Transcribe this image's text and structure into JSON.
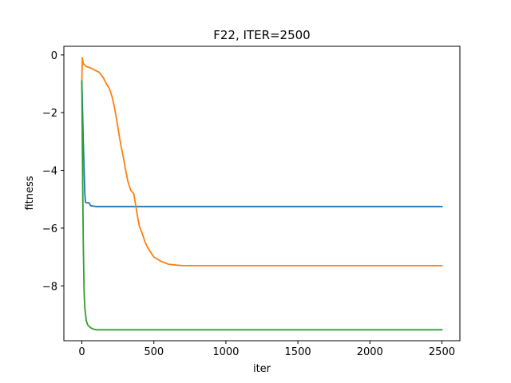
{
  "chart_data": {
    "type": "line",
    "title": "F22, ITER=2500",
    "xlabel": "iter",
    "ylabel": "fitness",
    "xlim": [
      -125,
      2625
    ],
    "ylim": [
      -9.9,
      0.3
    ],
    "xticks": [
      0,
      500,
      1000,
      1500,
      2000,
      2500
    ],
    "xtick_labels": [
      "0",
      "500",
      "1000",
      "1500",
      "2000",
      "2500"
    ],
    "yticks": [
      0,
      -2,
      -4,
      -6,
      -8
    ],
    "ytick_labels": [
      "0",
      "−2",
      "−4",
      "−6",
      "−8"
    ],
    "grid": false,
    "legend": "none",
    "series": [
      {
        "color": "#1f77b4",
        "x": [
          0,
          10,
          20,
          25,
          30,
          50,
          60,
          80,
          100,
          150,
          300,
          1000,
          2500
        ],
        "y": [
          -0.9,
          -3.0,
          -4.8,
          -5.1,
          -5.12,
          -5.12,
          -5.22,
          -5.24,
          -5.25,
          -5.25,
          -5.25,
          -5.25,
          -5.25
        ]
      },
      {
        "color": "#ff7f0e",
        "x": [
          0,
          3,
          10,
          30,
          60,
          100,
          120,
          150,
          170,
          190,
          210,
          230,
          250,
          270,
          290,
          300,
          320,
          340,
          360,
          370,
          380,
          390,
          400,
          420,
          440,
          460,
          480,
          500,
          550,
          600,
          650,
          700,
          800,
          1000,
          2500
        ],
        "y": [
          -0.9,
          -0.1,
          -0.3,
          -0.4,
          -0.45,
          -0.55,
          -0.6,
          -0.8,
          -1.0,
          -1.15,
          -1.45,
          -1.9,
          -2.5,
          -3.1,
          -3.6,
          -3.9,
          -4.4,
          -4.7,
          -4.8,
          -5.1,
          -5.4,
          -5.7,
          -5.95,
          -6.2,
          -6.5,
          -6.7,
          -6.85,
          -7.0,
          -7.15,
          -7.25,
          -7.28,
          -7.3,
          -7.3,
          -7.3,
          -7.3
        ]
      },
      {
        "color": "#2ca02c",
        "x": [
          0,
          5,
          10,
          15,
          20,
          30,
          40,
          50,
          60,
          80,
          100,
          200,
          2500
        ],
        "y": [
          -0.9,
          -4.0,
          -6.5,
          -8.2,
          -8.75,
          -9.2,
          -9.35,
          -9.4,
          -9.45,
          -9.5,
          -9.52,
          -9.52,
          -9.52
        ]
      }
    ]
  }
}
